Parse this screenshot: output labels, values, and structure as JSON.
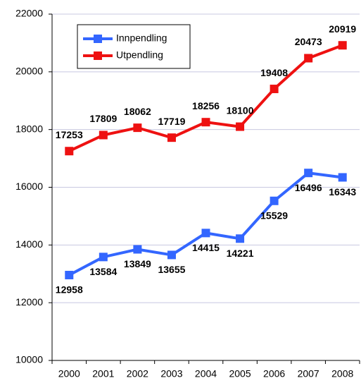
{
  "chart_data": {
    "type": "line",
    "categories": [
      "2000",
      "2001",
      "2002",
      "2003",
      "2004",
      "2005",
      "2006",
      "2007",
      "2008"
    ],
    "series": [
      {
        "name": "Innpendling",
        "color": "#3366ff",
        "values": [
          12958,
          13584,
          13849,
          13655,
          14415,
          14221,
          15529,
          16496,
          16343
        ]
      },
      {
        "name": "Utpendling",
        "color": "#ee1111",
        "values": [
          17253,
          17809,
          18062,
          17719,
          18256,
          18100,
          19408,
          20473,
          20919
        ]
      }
    ],
    "ylim": [
      10000,
      22000
    ],
    "yticks": [
      10000,
      12000,
      14000,
      16000,
      18000,
      20000,
      22000
    ],
    "grid": true
  }
}
